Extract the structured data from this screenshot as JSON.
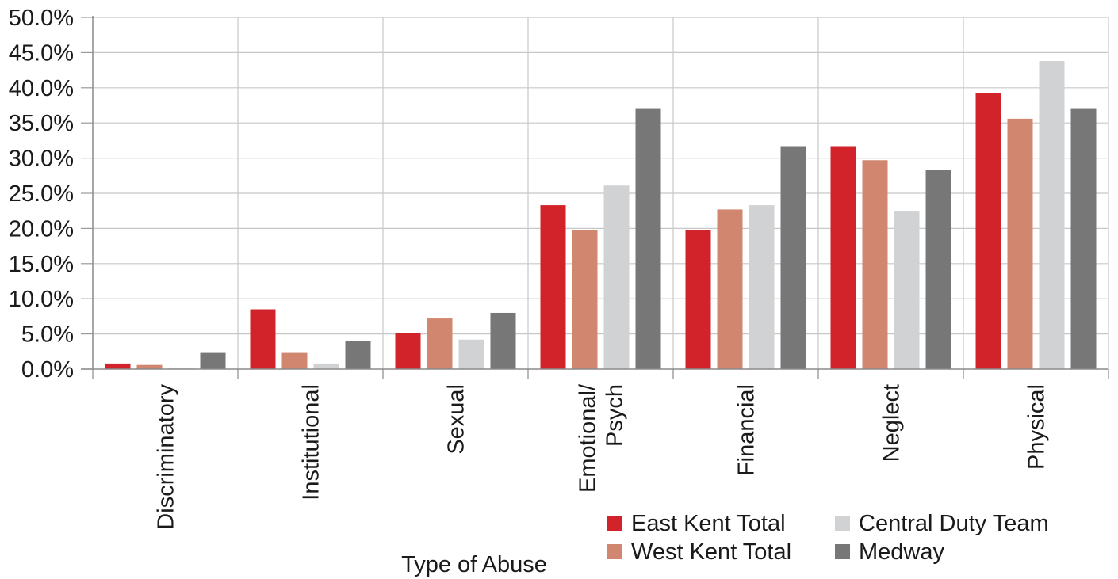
{
  "chart_data": {
    "type": "bar",
    "title": "",
    "xlabel": "Type of Abuse",
    "ylabel": "",
    "ylim": [
      0,
      50
    ],
    "y_ticks": [
      "0.0%",
      "5.0%",
      "10.0%",
      "15.0%",
      "20.0%",
      "25.0%",
      "30.0%",
      "35.0%",
      "40.0%",
      "45.0%",
      "50.0%"
    ],
    "y_tick_values": [
      0,
      5,
      10,
      15,
      20,
      25,
      30,
      35,
      40,
      45,
      50
    ],
    "categories": [
      [
        "Discriminatory"
      ],
      [
        "Institutional"
      ],
      [
        "Sexual"
      ],
      [
        "Emotional/",
        "Psych"
      ],
      [
        "Financial"
      ],
      [
        "Neglect"
      ],
      [
        "Physical"
      ]
    ],
    "series": [
      {
        "name": "East Kent Total",
        "color": "#d2232a",
        "values": [
          0.8,
          8.5,
          5.1,
          23.3,
          19.8,
          31.7,
          39.3
        ]
      },
      {
        "name": "West Kent Total",
        "color": "#d1866f",
        "values": [
          0.6,
          2.3,
          7.2,
          19.8,
          22.7,
          29.7,
          35.6
        ]
      },
      {
        "name": "Central Duty Team",
        "color": "#d1d2d4",
        "values": [
          0.2,
          0.8,
          4.2,
          26.1,
          23.3,
          22.4,
          43.8
        ]
      },
      {
        "name": "Medway",
        "color": "#777777",
        "values": [
          2.3,
          4.0,
          8.0,
          37.1,
          31.7,
          28.3,
          37.1
        ]
      }
    ],
    "grid": true,
    "gridlines": "vertical category separators and horizontal value lines",
    "legend_position": "bottom-right"
  }
}
